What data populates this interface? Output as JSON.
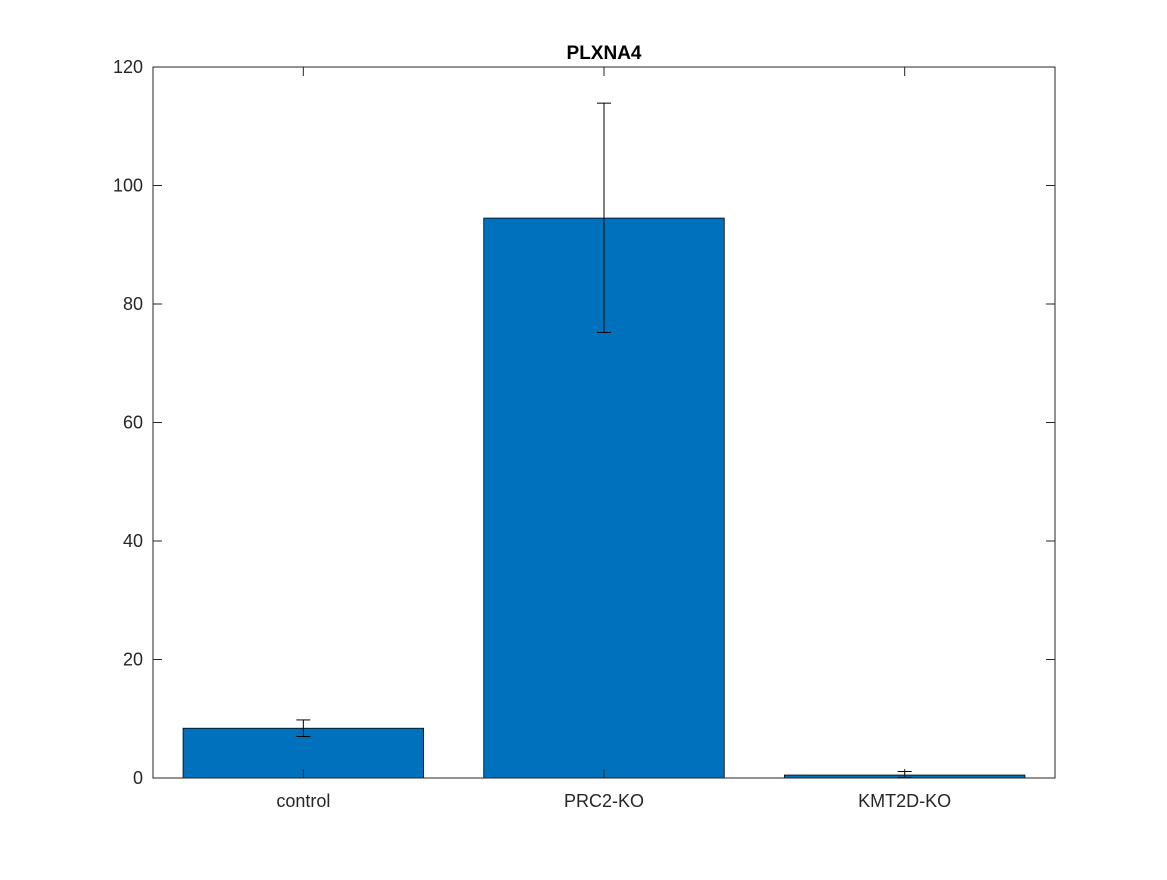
{
  "chart_data": {
    "type": "bar",
    "title": "PLXNA4",
    "xlabel": "",
    "ylabel": "",
    "categories": [
      "control",
      "PRC2-KO",
      "KMT2D-KO"
    ],
    "values": [
      8.4,
      94.5,
      0.5
    ],
    "error_low": [
      7.0,
      75.2,
      0.1
    ],
    "error_high": [
      9.8,
      113.9,
      1.1
    ],
    "ylim": [
      0,
      120
    ],
    "yticks": [
      0,
      20,
      40,
      60,
      80,
      100,
      120
    ],
    "grid": false,
    "legend": "none",
    "bar_color": "#0072BD",
    "edge_color": "#000000",
    "errorbar_color": "#000000"
  }
}
